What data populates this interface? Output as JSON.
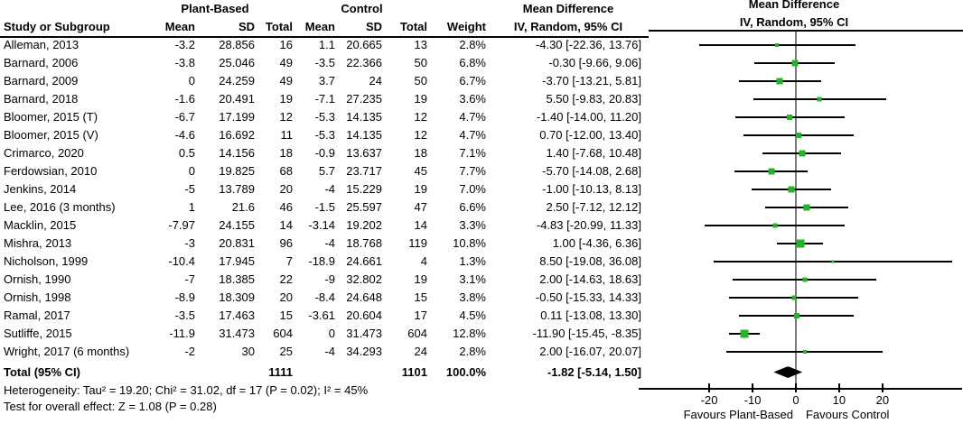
{
  "header": {
    "group_plant": "Plant-Based",
    "group_control": "Control",
    "md_text_header": "Mean Difference",
    "md_plot_header": "Mean Difference",
    "study": "Study or Subgroup",
    "mean1": "Mean",
    "sd1": "SD",
    "total1": "Total",
    "mean2": "Mean",
    "sd2": "SD",
    "total2": "Total",
    "weight": "Weight",
    "ci_text_sub": "IV, Random, 95% CI",
    "ci_plot_sub": "IV, Random, 95% CI"
  },
  "chart_data": {
    "type": "forest",
    "effect_measure": "Mean Difference",
    "model": "IV, Random, 95% CI",
    "studies": [
      {
        "name": "Alleman, 2013",
        "pb_mean": "-3.2",
        "pb_sd": "28.856",
        "pb_total": "16",
        "c_mean": "1.1",
        "c_sd": "20.665",
        "c_total": "13",
        "weight_pct": "2.8%",
        "weight": 2.8,
        "ci_text": "-4.30 [-22.36, 13.76]",
        "md": -4.3,
        "lo": -22.36,
        "hi": 13.76
      },
      {
        "name": "Barnard, 2006",
        "pb_mean": "-3.8",
        "pb_sd": "25.046",
        "pb_total": "49",
        "c_mean": "-3.5",
        "c_sd": "22.366",
        "c_total": "50",
        "weight_pct": "6.8%",
        "weight": 6.8,
        "ci_text": "-0.30 [-9.66, 9.06]",
        "md": -0.3,
        "lo": -9.66,
        "hi": 9.06
      },
      {
        "name": "Barnard, 2009",
        "pb_mean": "0",
        "pb_sd": "24.259",
        "pb_total": "49",
        "c_mean": "3.7",
        "c_sd": "24",
        "c_total": "50",
        "weight_pct": "6.7%",
        "weight": 6.7,
        "ci_text": "-3.70 [-13.21, 5.81]",
        "md": -3.7,
        "lo": -13.21,
        "hi": 5.81
      },
      {
        "name": "Barnard, 2018",
        "pb_mean": "-1.6",
        "pb_sd": "20.491",
        "pb_total": "19",
        "c_mean": "-7.1",
        "c_sd": "27.235",
        "c_total": "19",
        "weight_pct": "3.6%",
        "weight": 3.6,
        "ci_text": "5.50 [-9.83, 20.83]",
        "md": 5.5,
        "lo": -9.83,
        "hi": 20.83
      },
      {
        "name": "Bloomer, 2015 (T)",
        "pb_mean": "-6.7",
        "pb_sd": "17.199",
        "pb_total": "12",
        "c_mean": "-5.3",
        "c_sd": "14.135",
        "c_total": "12",
        "weight_pct": "4.7%",
        "weight": 4.7,
        "ci_text": "-1.40 [-14.00, 11.20]",
        "md": -1.4,
        "lo": -14.0,
        "hi": 11.2
      },
      {
        "name": "Bloomer, 2015 (V)",
        "pb_mean": "-4.6",
        "pb_sd": "16.692",
        "pb_total": "11",
        "c_mean": "-5.3",
        "c_sd": "14.135",
        "c_total": "12",
        "weight_pct": "4.7%",
        "weight": 4.7,
        "ci_text": "0.70 [-12.00, 13.40]",
        "md": 0.7,
        "lo": -12.0,
        "hi": 13.4
      },
      {
        "name": "Crimarco, 2020",
        "pb_mean": "0.5",
        "pb_sd": "14.156",
        "pb_total": "18",
        "c_mean": "-0.9",
        "c_sd": "13.637",
        "c_total": "18",
        "weight_pct": "7.1%",
        "weight": 7.1,
        "ci_text": "1.40 [-7.68, 10.48]",
        "md": 1.4,
        "lo": -7.68,
        "hi": 10.48
      },
      {
        "name": "Ferdowsian, 2010",
        "pb_mean": "0",
        "pb_sd": "19.825",
        "pb_total": "68",
        "c_mean": "5.7",
        "c_sd": "23.717",
        "c_total": "45",
        "weight_pct": "7.7%",
        "weight": 7.7,
        "ci_text": "-5.70 [-14.08, 2.68]",
        "md": -5.7,
        "lo": -14.08,
        "hi": 2.68
      },
      {
        "name": "Jenkins, 2014",
        "pb_mean": "-5",
        "pb_sd": "13.789",
        "pb_total": "20",
        "c_mean": "-4",
        "c_sd": "15.229",
        "c_total": "19",
        "weight_pct": "7.0%",
        "weight": 7.0,
        "ci_text": "-1.00 [-10.13, 8.13]",
        "md": -1.0,
        "lo": -10.13,
        "hi": 8.13
      },
      {
        "name": "Lee, 2016 (3 months)",
        "pb_mean": "1",
        "pb_sd": "21.6",
        "pb_total": "46",
        "c_mean": "-1.5",
        "c_sd": "25.597",
        "c_total": "47",
        "weight_pct": "6.6%",
        "weight": 6.6,
        "ci_text": "2.50 [-7.12, 12.12]",
        "md": 2.5,
        "lo": -7.12,
        "hi": 12.12
      },
      {
        "name": "Macklin, 2015",
        "pb_mean": "-7.97",
        "pb_sd": "24.155",
        "pb_total": "14",
        "c_mean": "-3.14",
        "c_sd": "19.202",
        "c_total": "14",
        "weight_pct": "3.3%",
        "weight": 3.3,
        "ci_text": "-4.83 [-20.99, 11.33]",
        "md": -4.83,
        "lo": -20.99,
        "hi": 11.33
      },
      {
        "name": "Mishra, 2013",
        "pb_mean": "-3",
        "pb_sd": "20.831",
        "pb_total": "96",
        "c_mean": "-4",
        "c_sd": "18.768",
        "c_total": "119",
        "weight_pct": "10.8%",
        "weight": 10.8,
        "ci_text": "1.00 [-4.36, 6.36]",
        "md": 1.0,
        "lo": -4.36,
        "hi": 6.36
      },
      {
        "name": "Nicholson, 1999",
        "pb_mean": "-10.4",
        "pb_sd": "17.945",
        "pb_total": "7",
        "c_mean": "-18.9",
        "c_sd": "24.661",
        "c_total": "4",
        "weight_pct": "1.3%",
        "weight": 1.3,
        "ci_text": "8.50 [-19.08, 36.08]",
        "md": 8.5,
        "lo": -19.08,
        "hi": 36.08
      },
      {
        "name": "Ornish, 1990",
        "pb_mean": "-7",
        "pb_sd": "18.385",
        "pb_total": "22",
        "c_mean": "-9",
        "c_sd": "32.802",
        "c_total": "19",
        "weight_pct": "3.1%",
        "weight": 3.1,
        "ci_text": "2.00 [-14.63, 18.63]",
        "md": 2.0,
        "lo": -14.63,
        "hi": 18.63
      },
      {
        "name": "Ornish, 1998",
        "pb_mean": "-8.9",
        "pb_sd": "18.309",
        "pb_total": "20",
        "c_mean": "-8.4",
        "c_sd": "24.648",
        "c_total": "15",
        "weight_pct": "3.8%",
        "weight": 3.8,
        "ci_text": "-0.50 [-15.33, 14.33]",
        "md": -0.5,
        "lo": -15.33,
        "hi": 14.33
      },
      {
        "name": "Ramal, 2017",
        "pb_mean": "-3.5",
        "pb_sd": "17.463",
        "pb_total": "15",
        "c_mean": "-3.61",
        "c_sd": "20.604",
        "c_total": "17",
        "weight_pct": "4.5%",
        "weight": 4.5,
        "ci_text": "0.11 [-13.08, 13.30]",
        "md": 0.11,
        "lo": -13.08,
        "hi": 13.3
      },
      {
        "name": "Sutliffe, 2015",
        "pb_mean": "-11.9",
        "pb_sd": "31.473",
        "pb_total": "604",
        "c_mean": "0",
        "c_sd": "31.473",
        "c_total": "604",
        "weight_pct": "12.8%",
        "weight": 12.8,
        "ci_text": "-11.90 [-15.45, -8.35]",
        "md": -11.9,
        "lo": -15.45,
        "hi": -8.35
      },
      {
        "name": "Wright, 2017 (6 months)",
        "pb_mean": "-2",
        "pb_sd": "30",
        "pb_total": "25",
        "c_mean": "-4",
        "c_sd": "34.293",
        "c_total": "24",
        "weight_pct": "2.8%",
        "weight": 2.8,
        "ci_text": "2.00 [-16.07, 20.07]",
        "md": 2.0,
        "lo": -16.07,
        "hi": 20.07
      }
    ],
    "total": {
      "label": "Total (95% CI)",
      "pb_total": "1111",
      "c_total": "1101",
      "weight_pct": "100.0%",
      "ci_text": "-1.82 [-5.14, 1.50]",
      "md": -1.82,
      "lo": -5.14,
      "hi": 1.5
    },
    "heterogeneity": "Heterogeneity: Tau² = 19.20; Chi² = 31.02, df = 17 (P = 0.02); I² = 45%",
    "overall_effect": "Test for overall effect: Z = 1.08 (P = 0.28)",
    "axis": {
      "ticks": [
        -20,
        -10,
        0,
        10,
        20
      ],
      "xlim": [
        -34.0,
        38.6
      ],
      "favours_left": "Favours Plant-Based",
      "favours_right": "Favours Control"
    },
    "marker_color": "#26B226",
    "diamond_color": "#000000",
    "zero_line_color": "#7a7a7a"
  }
}
